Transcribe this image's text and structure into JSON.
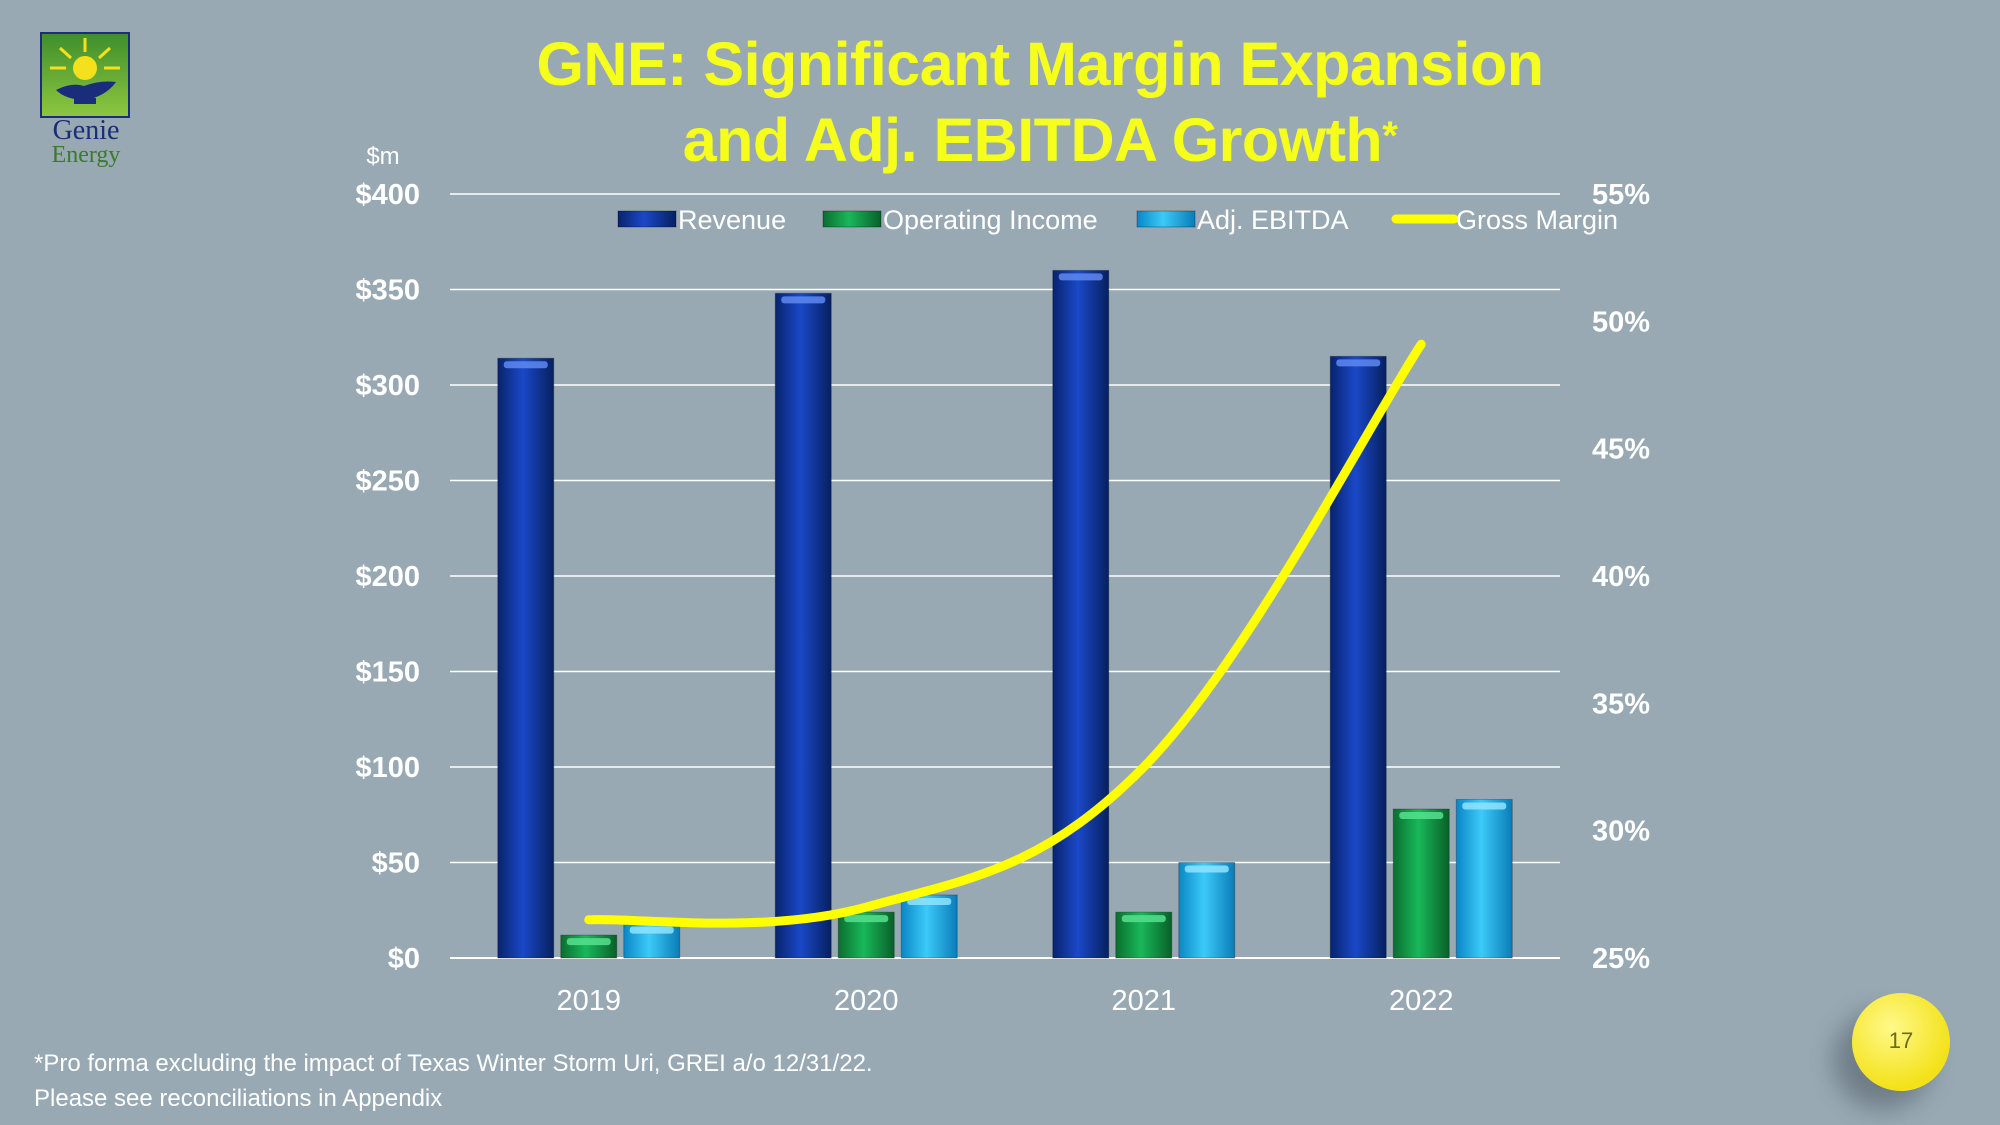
{
  "title_line1": "GNE: Significant Margin Expansion",
  "title_line2": "and Adj. EBITDA Growth",
  "title_mark": "*",
  "logo": {
    "name": "Genie",
    "sub": "Energy"
  },
  "footnote_line1": "*Pro forma excluding the impact of Texas Winter Storm Uri, GREI a/o 12/31/22.",
  "footnote_line2": "Please see reconciliations in Appendix",
  "page_number": "17",
  "colors": {
    "background": "#98a9b3",
    "title": "#f6ff1c",
    "revenue": "#0e35a0",
    "operating_income": "#12a64a",
    "adj_ebitda": "#18b4ee",
    "gross_margin": "#ffff00"
  },
  "chart_data": {
    "type": "bar",
    "categories": [
      "2019",
      "2020",
      "2021",
      "2022"
    ],
    "y_unit_label": "$m",
    "ylim": [
      0,
      400
    ],
    "y_ticks": [
      0,
      50,
      100,
      150,
      200,
      250,
      300,
      350,
      400
    ],
    "y_tick_labels": [
      "$0",
      "$50",
      "$100",
      "$150",
      "$200",
      "$250",
      "$300",
      "$350",
      "$400"
    ],
    "y2lim": [
      25,
      55
    ],
    "y2_ticks": [
      25,
      30,
      35,
      40,
      45,
      50,
      55
    ],
    "y2_tick_labels": [
      "25%",
      "30%",
      "35%",
      "40%",
      "45%",
      "50%",
      "55%"
    ],
    "series": [
      {
        "name": "Revenue",
        "type": "bar",
        "axis": "left",
        "values": [
          314,
          348,
          360,
          315
        ]
      },
      {
        "name": "Operating Income",
        "type": "bar",
        "axis": "left",
        "values": [
          12,
          24,
          24,
          78
        ]
      },
      {
        "name": "Adj. EBITDA",
        "type": "bar",
        "axis": "left",
        "values": [
          18,
          33,
          50,
          83
        ]
      },
      {
        "name": "Gross Margin",
        "type": "line",
        "axis": "right",
        "values": [
          26.5,
          27.0,
          32.5,
          49.1
        ]
      }
    ],
    "grid": true,
    "legend": "top"
  }
}
